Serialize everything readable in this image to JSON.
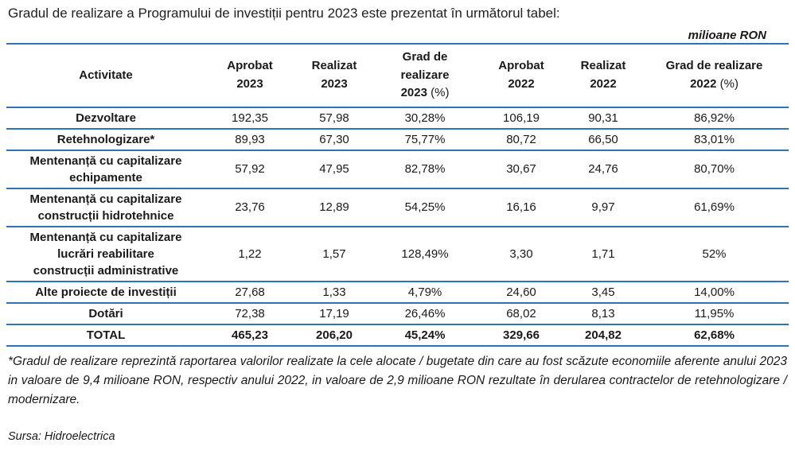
{
  "title": "Gradul de realizare a Programului de investiții pentru 2023 este prezentat în următorul tabel:",
  "unit_label": "milioane RON",
  "table": {
    "headers": {
      "activity": "Activitate",
      "approved_2023": "Aprobat\n2023",
      "realized_2023": "Realizat\n2023",
      "grade_2023": "Grad de\nrealizare\n2023",
      "grade_2023_pct": " (%)",
      "approved_2022": "Aprobat\n2022",
      "realized_2022": "Realizat\n2022",
      "grade_2022": "Grad de realizare\n2022",
      "grade_2022_pct": " (%)"
    },
    "rows": [
      {
        "activity": "Dezvoltare",
        "approved_2023": "192,35",
        "realized_2023": "57,98",
        "grade_2023": "30,28%",
        "approved_2022": "106,19",
        "realized_2022": "90,31",
        "grade_2022": "86,92%"
      },
      {
        "activity": "Retehnologizare*",
        "approved_2023": "89,93",
        "realized_2023": "67,30",
        "grade_2023": "75,77%",
        "approved_2022": "80,72",
        "realized_2022": "66,50",
        "grade_2022": "83,01%"
      },
      {
        "activity": "Mentenanță cu capitalizare\nechipamente",
        "approved_2023": "57,92",
        "realized_2023": "47,95",
        "grade_2023": "82,78%",
        "approved_2022": "30,67",
        "realized_2022": "24,76",
        "grade_2022": "80,70%"
      },
      {
        "activity": "Mentenanță cu capitalizare\nconstrucții hidrotehnice",
        "approved_2023": "23,76",
        "realized_2023": "12,89",
        "grade_2023": "54,25%",
        "approved_2022": "16,16",
        "realized_2022": "9,97",
        "grade_2022": "61,69%"
      },
      {
        "activity": "Mentenanță cu capitalizare\nlucrări reabilitare\nconstrucții administrative",
        "approved_2023": "1,22",
        "realized_2023": "1,57",
        "grade_2023": "128,49%",
        "approved_2022": "3,30",
        "realized_2022": "1,71",
        "grade_2022": "52%"
      },
      {
        "activity": "Alte proiecte de investiții",
        "approved_2023": "27,68",
        "realized_2023": "1,33",
        "grade_2023": "4,79%",
        "approved_2022": "24,60",
        "realized_2022": "3,45",
        "grade_2022": "14,00%"
      },
      {
        "activity": "Dotări",
        "approved_2023": "72,38",
        "realized_2023": "17,19",
        "grade_2023": "26,46%",
        "approved_2022": "68,02",
        "realized_2022": "8,13",
        "grade_2022": "11,95%"
      }
    ],
    "total": {
      "activity": "TOTAL",
      "approved_2023": "465,23",
      "realized_2023": "206,20",
      "grade_2023": "45,24%",
      "approved_2022": "329,66",
      "realized_2022": "204,82",
      "grade_2022": "62,68%"
    }
  },
  "footnote": "*Gradul de realizare reprezintă raportarea valorilor realizate la cele alocate / bugetate din care au fost scăzute economiile aferente anului 2023 in valoare de 9,4 milioane RON, respectiv anului 2022, in valoare de 2,9 milioane RON rezultate în derularea contractelor de retehnologizare / modernizare.",
  "source": "Sursa: Hidroelectrica"
}
